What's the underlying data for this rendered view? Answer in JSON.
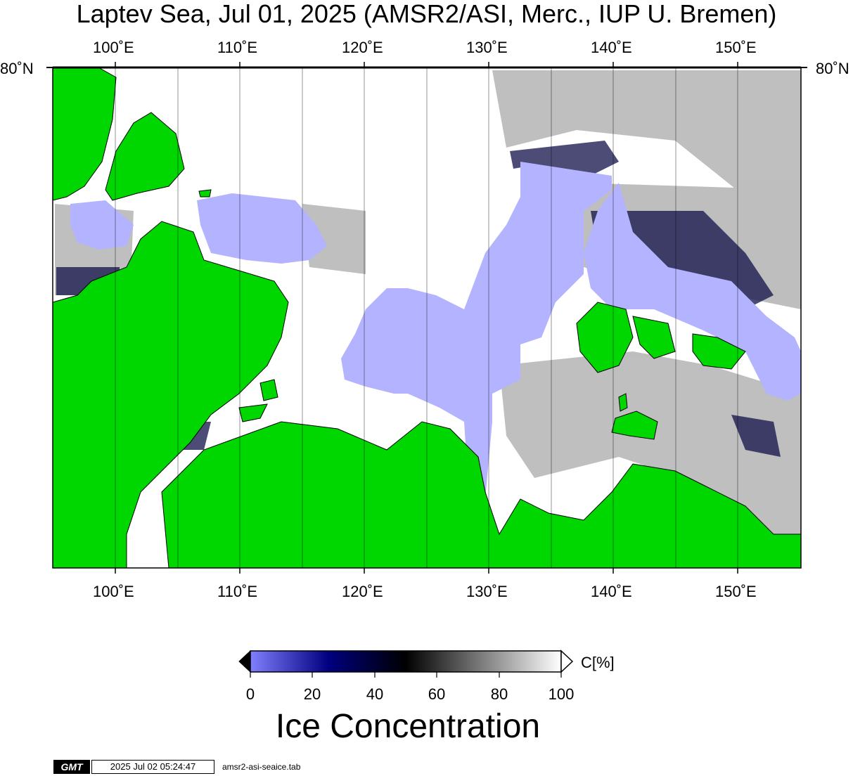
{
  "header": {
    "title": "Laptev Sea, Jul 01, 2025 (AMSR2/ASI, Merc., IUP U. Bremen)"
  },
  "map": {
    "lon_labels": [
      "100˚E",
      "110˚E",
      "120˚E",
      "130˚E",
      "140˚E",
      "150˚E"
    ],
    "lat_label": "80˚N",
    "colors": {
      "land": "#00d600",
      "open_water": "#b3b3ff",
      "ice_full": "#ffffff",
      "frame": "#000000"
    }
  },
  "colorbar": {
    "unit_label": "C[%]",
    "ticks": [
      "0",
      "20",
      "40",
      "60",
      "80",
      "100"
    ],
    "title": "Ice Concentration",
    "stops": [
      "#8080ff",
      "#000080",
      "#000000",
      "#7f7f7f",
      "#ffffff"
    ]
  },
  "footer": {
    "gmt_logo": "GMT",
    "timestamp": "2025 Jul 02 05:24:47",
    "script": "amsr2-asi-seaice.tab"
  }
}
